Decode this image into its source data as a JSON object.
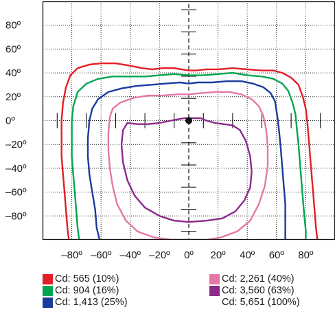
{
  "chart_data": {
    "type": "line",
    "title": "",
    "xlabel": "",
    "ylabel": "",
    "xlim": [
      -100,
      100
    ],
    "ylim": [
      -100,
      100
    ],
    "grid": true,
    "x_ticks": [
      -80,
      -60,
      -40,
      -20,
      0,
      20,
      40,
      60,
      80
    ],
    "y_ticks": [
      80,
      60,
      40,
      20,
      0,
      -20,
      -40,
      -60,
      -80
    ],
    "x_tick_labels": [
      "–80º",
      "–60º",
      "–40º",
      "–20º",
      "0º",
      "20º",
      "40º",
      "60º",
      "80º"
    ],
    "y_tick_labels": [
      "80º",
      "60º",
      "40º",
      "20º",
      "0º",
      "–20º",
      "–40º",
      "–60º",
      "–80º"
    ],
    "center_point": [
      0,
      0
    ],
    "legend_position": "bottom",
    "series": [
      {
        "name": "Cd: 565 (10%)",
        "color": "#e31e24",
        "points": [
          [
            -82,
            -100
          ],
          [
            -83,
            -90
          ],
          [
            -84,
            -75
          ],
          [
            -85,
            -60
          ],
          [
            -86,
            -45
          ],
          [
            -87,
            -30
          ],
          [
            -87,
            -15
          ],
          [
            -87,
            0
          ],
          [
            -86,
            15
          ],
          [
            -84,
            28
          ],
          [
            -81,
            38
          ],
          [
            -76,
            44
          ],
          [
            -68,
            47
          ],
          [
            -60,
            48
          ],
          [
            -50,
            48
          ],
          [
            -40,
            46
          ],
          [
            -32,
            44
          ],
          [
            -25,
            43
          ],
          [
            -18,
            44
          ],
          [
            -10,
            44
          ],
          [
            -5,
            43
          ],
          [
            0,
            42
          ],
          [
            5,
            42
          ],
          [
            12,
            43
          ],
          [
            20,
            43
          ],
          [
            30,
            44
          ],
          [
            40,
            43
          ],
          [
            50,
            42
          ],
          [
            58,
            42
          ],
          [
            64,
            40
          ],
          [
            70,
            36
          ],
          [
            75,
            30
          ],
          [
            78,
            20
          ],
          [
            80,
            10
          ],
          [
            81,
            0
          ],
          [
            82,
            -15
          ],
          [
            83,
            -30
          ],
          [
            84,
            -45
          ],
          [
            85,
            -60
          ],
          [
            86,
            -75
          ],
          [
            87,
            -90
          ],
          [
            88,
            -100
          ]
        ]
      },
      {
        "name": "Cd: 904 (16%)",
        "color": "#00a651",
        "points": [
          [
            -75,
            -100
          ],
          [
            -76,
            -90
          ],
          [
            -77,
            -75
          ],
          [
            -78,
            -60
          ],
          [
            -79,
            -45
          ],
          [
            -80,
            -30
          ],
          [
            -80,
            -15
          ],
          [
            -80,
            0
          ],
          [
            -79,
            12
          ],
          [
            -76,
            24
          ],
          [
            -70,
            31
          ],
          [
            -62,
            35
          ],
          [
            -52,
            37
          ],
          [
            -42,
            37
          ],
          [
            -30,
            37
          ],
          [
            -20,
            38
          ],
          [
            -10,
            39
          ],
          [
            0,
            38
          ],
          [
            10,
            38
          ],
          [
            20,
            39
          ],
          [
            30,
            40
          ],
          [
            40,
            38
          ],
          [
            50,
            37
          ],
          [
            58,
            35
          ],
          [
            64,
            31
          ],
          [
            68,
            25
          ],
          [
            71,
            15
          ],
          [
            73,
            5
          ],
          [
            74,
            -8
          ],
          [
            75,
            -20
          ],
          [
            76,
            -35
          ],
          [
            77,
            -50
          ],
          [
            78,
            -65
          ],
          [
            79,
            -80
          ],
          [
            80,
            -92
          ],
          [
            80,
            -100
          ]
        ]
      },
      {
        "name": "Cd: 1,413 (25%)",
        "color": "#1a3a9c",
        "points": [
          [
            -61,
            -100
          ],
          [
            -63,
            -90
          ],
          [
            -64,
            -75
          ],
          [
            -66,
            -60
          ],
          [
            -68,
            -45
          ],
          [
            -69,
            -30
          ],
          [
            -69,
            -15
          ],
          [
            -68,
            0
          ],
          [
            -66,
            10
          ],
          [
            -62,
            18
          ],
          [
            -55,
            24
          ],
          [
            -46,
            27
          ],
          [
            -36,
            29
          ],
          [
            -26,
            30
          ],
          [
            -16,
            31
          ],
          [
            -6,
            32
          ],
          [
            0,
            31
          ],
          [
            6,
            32
          ],
          [
            16,
            32
          ],
          [
            26,
            33
          ],
          [
            36,
            33
          ],
          [
            44,
            31
          ],
          [
            51,
            28
          ],
          [
            56,
            23
          ],
          [
            59,
            16
          ],
          [
            60,
            8
          ],
          [
            61,
            0
          ],
          [
            62,
            -12
          ],
          [
            63,
            -25
          ],
          [
            64,
            -40
          ],
          [
            65,
            -55
          ],
          [
            66,
            -70
          ],
          [
            66,
            -85
          ],
          [
            66,
            -100
          ]
        ]
      },
      {
        "name": "Cd: 2,261 (40%)",
        "color": "#e577a6",
        "points": [
          [
            0,
            -100
          ],
          [
            -12,
            -100
          ],
          [
            -24,
            -98
          ],
          [
            -35,
            -93
          ],
          [
            -43,
            -84
          ],
          [
            -49,
            -70
          ],
          [
            -52,
            -55
          ],
          [
            -54,
            -40
          ],
          [
            -55,
            -25
          ],
          [
            -55,
            -10
          ],
          [
            -54,
            3
          ],
          [
            -52,
            10
          ],
          [
            -47,
            15
          ],
          [
            -38,
            19
          ],
          [
            -28,
            21
          ],
          [
            -18,
            21
          ],
          [
            -8,
            22
          ],
          [
            0,
            22
          ],
          [
            8,
            23
          ],
          [
            18,
            24
          ],
          [
            28,
            24
          ],
          [
            36,
            22
          ],
          [
            43,
            18
          ],
          [
            48,
            12
          ],
          [
            51,
            4
          ],
          [
            53,
            -8
          ],
          [
            54,
            -22
          ],
          [
            54,
            -38
          ],
          [
            52,
            -55
          ],
          [
            48,
            -70
          ],
          [
            42,
            -84
          ],
          [
            33,
            -93
          ],
          [
            22,
            -98
          ],
          [
            12,
            -100
          ],
          [
            0,
            -100
          ]
        ]
      },
      {
        "name": "Cd: 3,560 (63%)",
        "color": "#8c2a8c",
        "points": [
          [
            0,
            -85
          ],
          [
            -10,
            -84
          ],
          [
            -20,
            -80
          ],
          [
            -30,
            -73
          ],
          [
            -37,
            -63
          ],
          [
            -42,
            -50
          ],
          [
            -45,
            -35
          ],
          [
            -46,
            -20
          ],
          [
            -45,
            -8
          ],
          [
            -42,
            -2
          ],
          [
            -35,
            -3
          ],
          [
            -28,
            -3
          ],
          [
            -20,
            -2
          ],
          [
            -12,
            0
          ],
          [
            -8,
            1
          ],
          [
            -3,
            2
          ],
          [
            0,
            2
          ],
          [
            3,
            2
          ],
          [
            8,
            2
          ],
          [
            12,
            0
          ],
          [
            18,
            -2
          ],
          [
            24,
            -3
          ],
          [
            30,
            -4
          ],
          [
            35,
            -8
          ],
          [
            39,
            -17
          ],
          [
            42,
            -30
          ],
          [
            43,
            -43
          ],
          [
            42,
            -56
          ],
          [
            38,
            -67
          ],
          [
            32,
            -76
          ],
          [
            23,
            -82
          ],
          [
            12,
            -84
          ],
          [
            0,
            -85
          ]
        ]
      }
    ],
    "legend": [
      {
        "color": "#e31e24",
        "label": "Cd: 565 (10%)"
      },
      {
        "color": "#00a651",
        "label": "Cd: 904 (16%)"
      },
      {
        "color": "#1a3a9c",
        "label": "Cd: 1,413 (25%)"
      },
      {
        "color": "#e577a6",
        "label": "Cd: 2,261 (40%)"
      },
      {
        "color": "#8c2a8c",
        "label": "Cd: 3,560 (63%)"
      },
      {
        "color": "",
        "label": "Cd: 5,651 (100%)"
      }
    ]
  }
}
